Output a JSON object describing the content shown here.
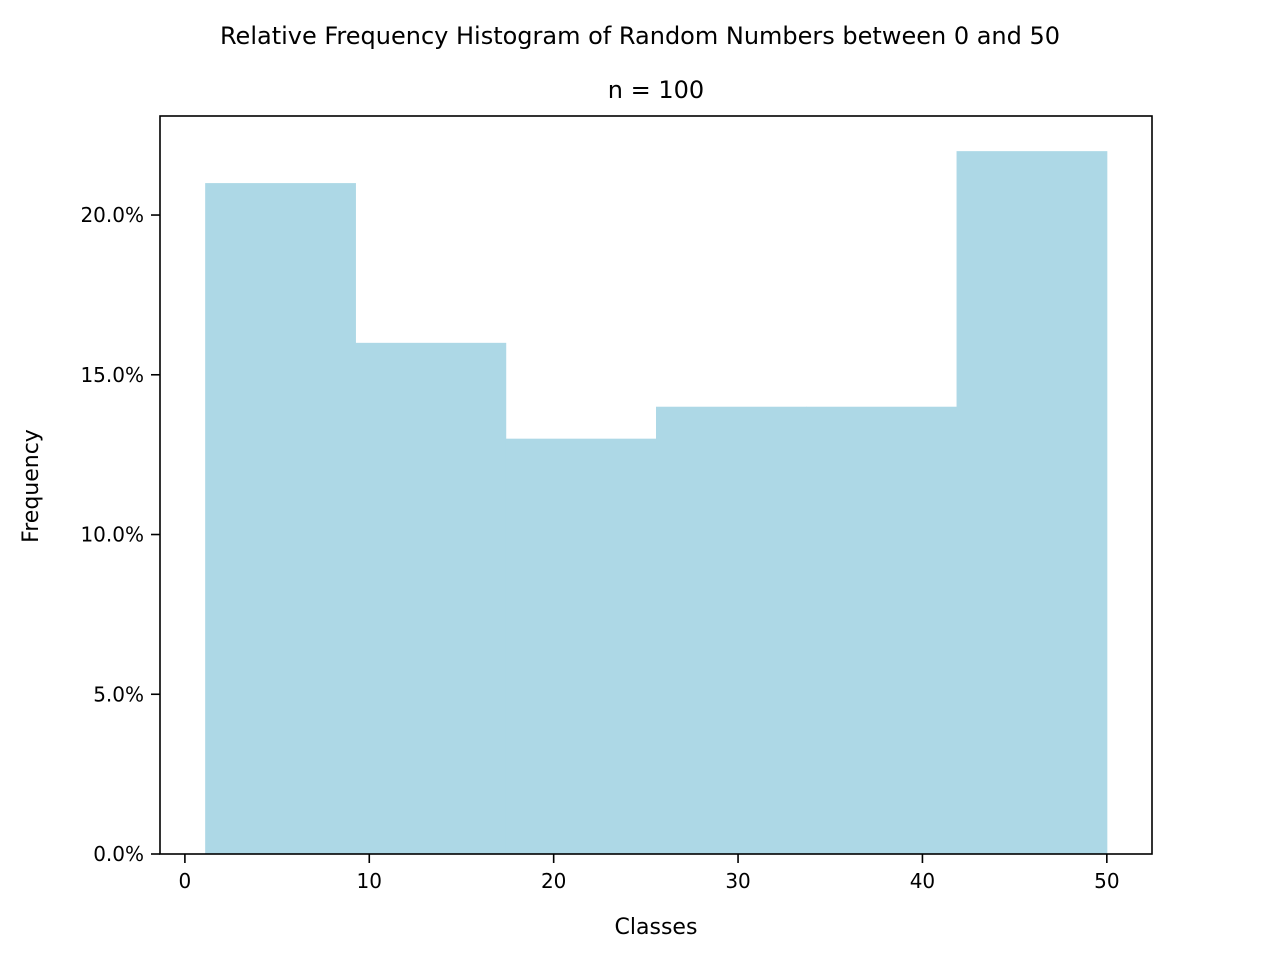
{
  "chart_data": {
    "type": "bar",
    "title": "Relative Frequency Histogram of Random Numbers between 0 and 50",
    "subtitle": "n = 100",
    "xlabel": "Classes",
    "ylabel": "Frequency",
    "bin_edges": [
      1.1,
      9.25,
      17.4,
      25.55,
      33.7,
      41.85,
      50.0
    ],
    "values": [
      0.21,
      0.16,
      0.13,
      0.14,
      0.14,
      0.22
    ],
    "xlim": [
      -1.35,
      52.45
    ],
    "ylim": [
      0,
      0.231
    ],
    "xticks": [
      0,
      10,
      20,
      30,
      40,
      50
    ],
    "xtick_labels": [
      "0",
      "10",
      "20",
      "30",
      "40",
      "50"
    ],
    "yticks": [
      0,
      0.05,
      0.1,
      0.15,
      0.2
    ],
    "ytick_labels": [
      "0.0%",
      "5.0%",
      "10.0%",
      "15.0%",
      "20.0%"
    ],
    "bar_color": "#add8e6",
    "grid": false
  }
}
